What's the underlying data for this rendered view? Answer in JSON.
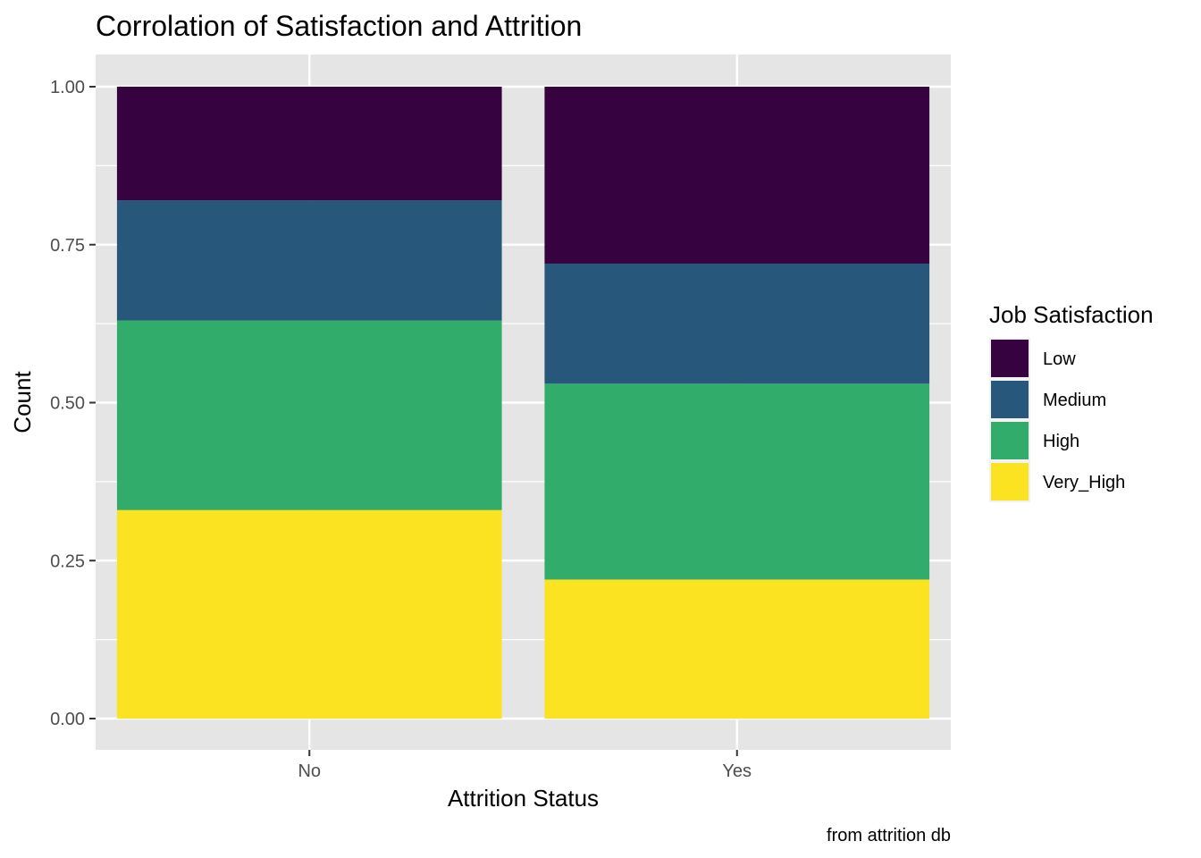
{
  "chart_data": {
    "type": "bar",
    "stacked": true,
    "normalized": true,
    "title": "Corrolation of Satisfaction and Attrition",
    "xlabel": "Attrition Status",
    "ylabel": "Count",
    "caption": "from attrition db",
    "categories": [
      "No",
      "Yes"
    ],
    "ylim": [
      0,
      1
    ],
    "yticks": [
      "0.00",
      "0.25",
      "0.50",
      "0.75",
      "1.00"
    ],
    "ytick_values": [
      0,
      0.25,
      0.5,
      0.75,
      1.0
    ],
    "grid": true,
    "legend": {
      "title": "Job Satisfaction",
      "position": "right"
    },
    "series": [
      {
        "name": "Low",
        "color": "#360240",
        "values": [
          0.18,
          0.28
        ]
      },
      {
        "name": "Medium",
        "color": "#27577B",
        "values": [
          0.19,
          0.19
        ]
      },
      {
        "name": "High",
        "color": "#31AC6A",
        "values": [
          0.3,
          0.31
        ]
      },
      {
        "name": "Very_High",
        "color": "#FCE321",
        "values": [
          0.33,
          0.22
        ]
      }
    ]
  }
}
